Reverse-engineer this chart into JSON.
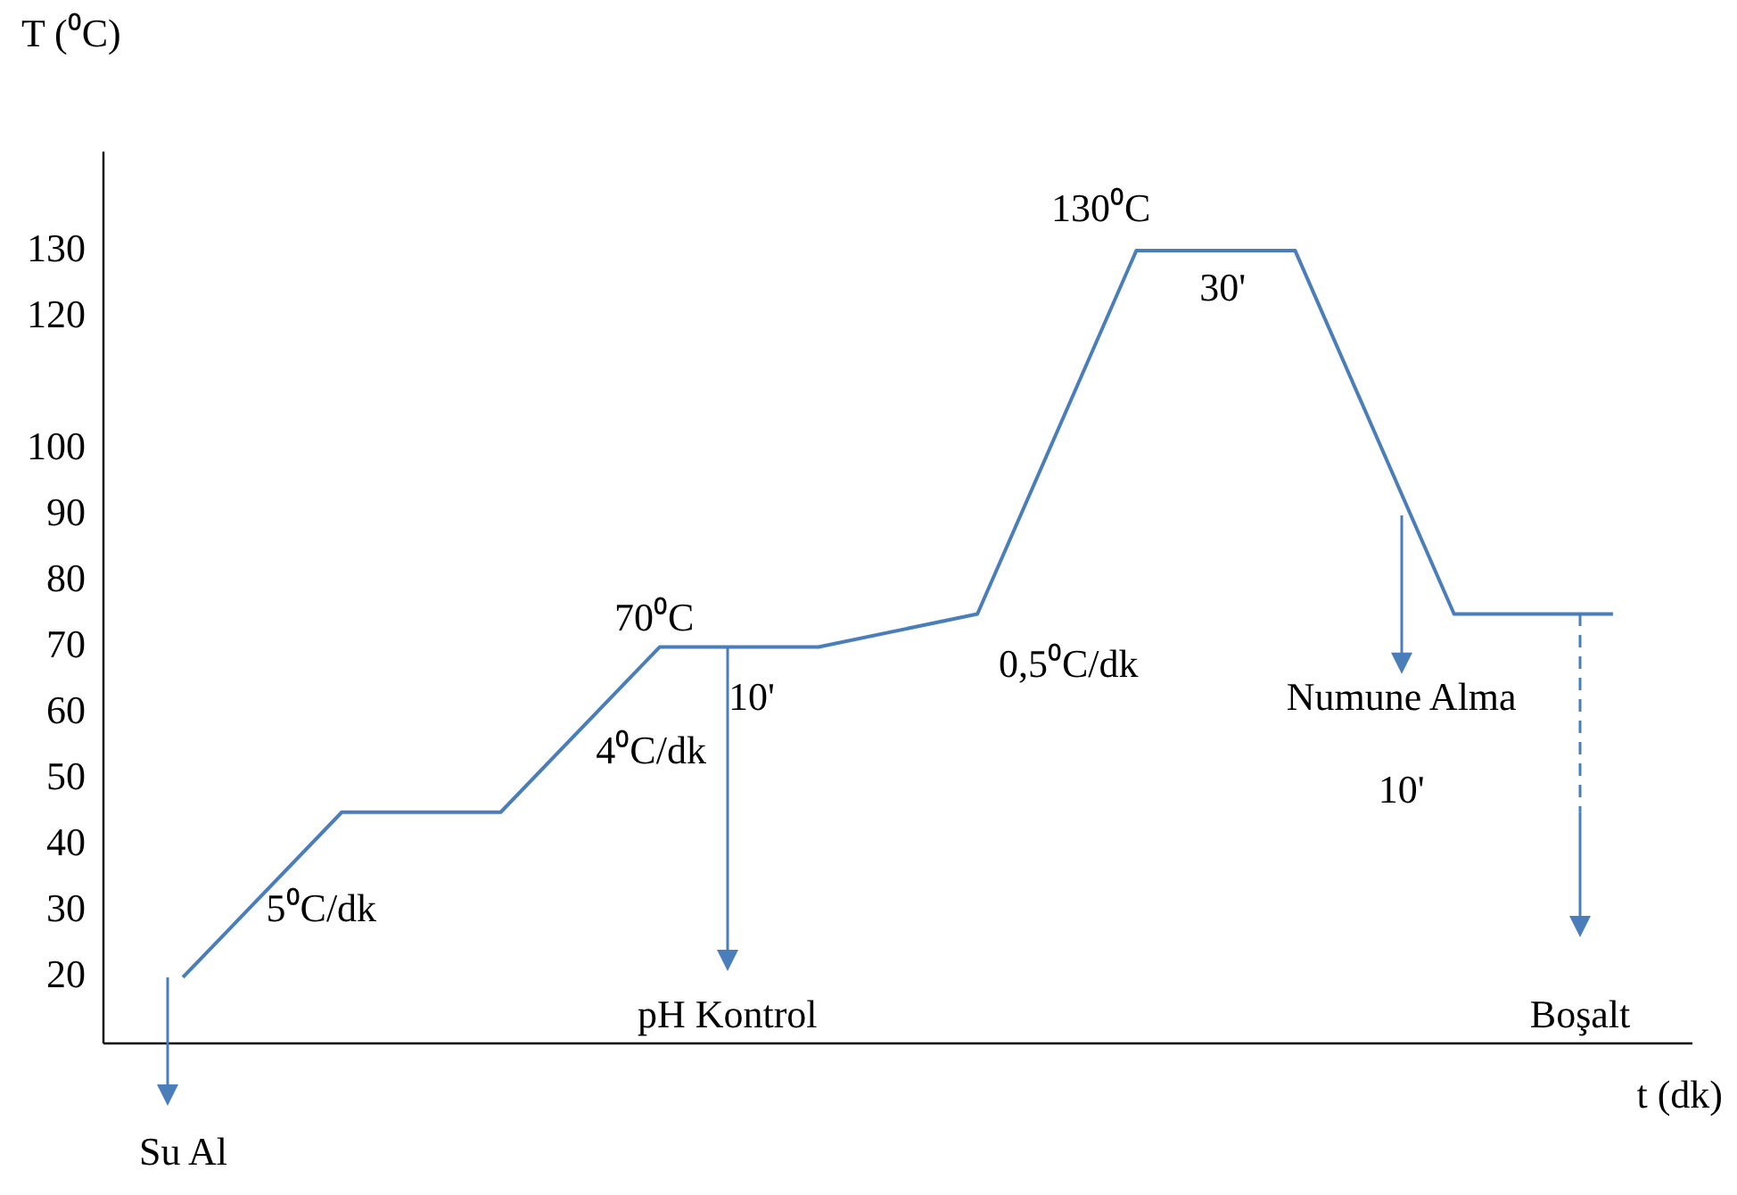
{
  "chart_data": {
    "type": "line",
    "xlabel": "t (dk)",
    "ylabel": "T (⁰C)",
    "categories": [
      null,
      null,
      null,
      null,
      null,
      null,
      null,
      null,
      null,
      null
    ],
    "series": [
      {
        "color": "#4a7ebb",
        "values": [
          20,
          45,
          45,
          70,
          70,
          75,
          130,
          130,
          75,
          75
        ]
      }
    ],
    "ylim": [
      10,
      145
    ],
    "yticks": [
      20,
      30,
      40,
      50,
      60,
      70,
      80,
      90,
      100,
      120,
      130
    ],
    "marker": "none",
    "line_style": "solid",
    "grid": false,
    "legend": false,
    "tick_labels": "y",
    "annotations": [
      "130⁰C",
      "30'",
      "70⁰C",
      "10'",
      "0,5⁰C/dk",
      "4⁰C/dk",
      "5⁰C/dk",
      "pH Kontrol",
      "Numune Alma",
      "10'",
      "Boşalt",
      "Su Al"
    ]
  }
}
